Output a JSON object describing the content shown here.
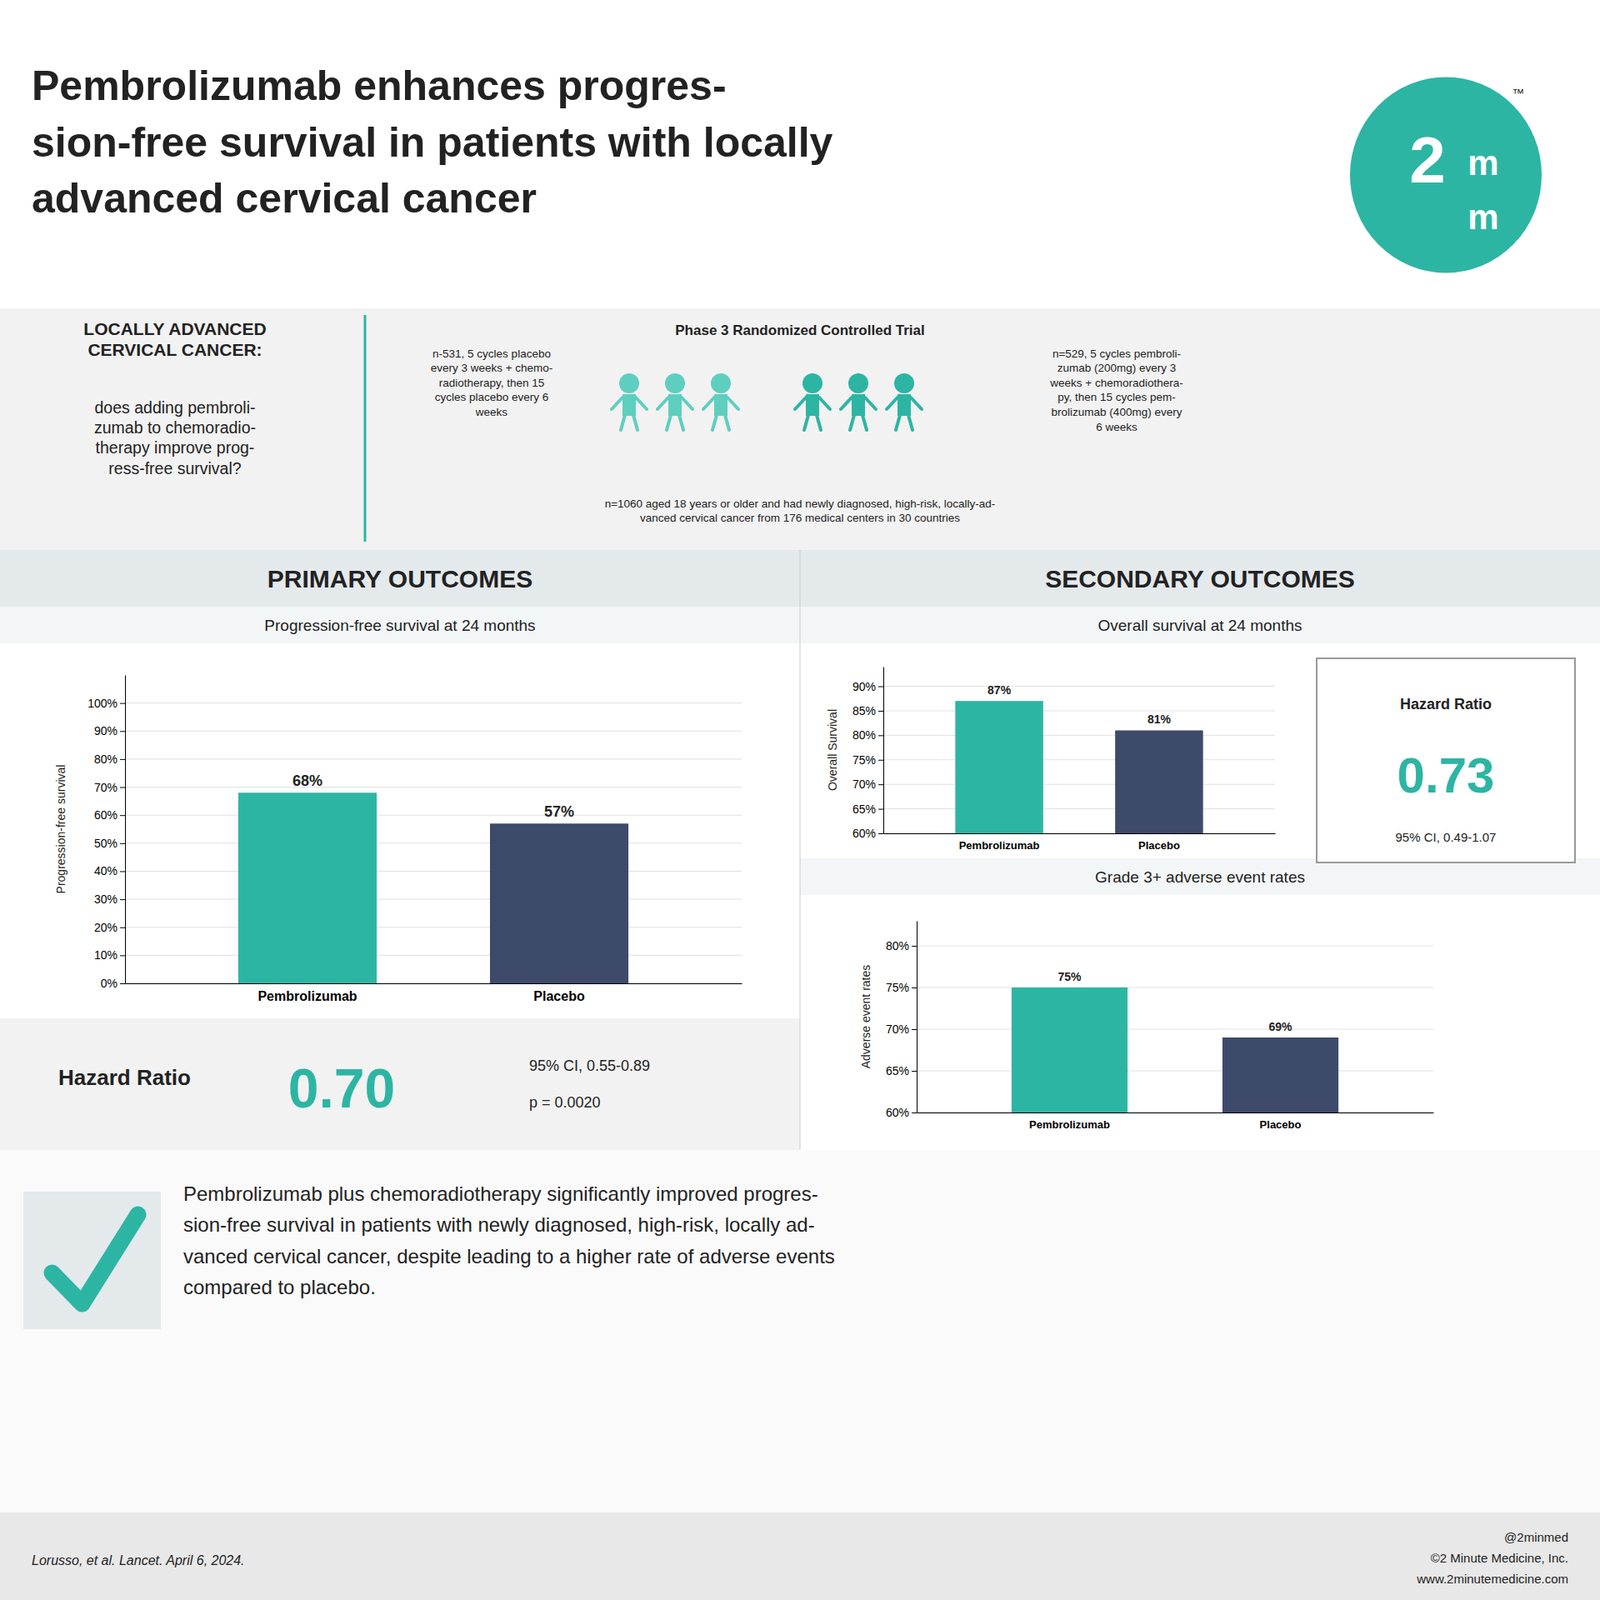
{
  "chart_data": [
    {
      "type": "bar",
      "title": "Progression-free survival at 24 months",
      "ylabel": "Progression-free survival",
      "categories": [
        "Pembrolizumab",
        "Placebo"
      ],
      "values": [
        68,
        57
      ],
      "value_labels": [
        "68%",
        "57%"
      ],
      "colors": [
        "#2db5a3",
        "#3d4a6a"
      ],
      "ylim": [
        0,
        110
      ],
      "yticks": [
        {
          "value": 0,
          "label": "0%"
        },
        {
          "value": 10,
          "label": "10%"
        },
        {
          "value": 20,
          "label": "20%"
        },
        {
          "value": 30,
          "label": "30%"
        },
        {
          "value": 40,
          "label": "40%"
        },
        {
          "value": 50,
          "label": "50%"
        },
        {
          "value": 60,
          "label": "60%"
        },
        {
          "value": 70,
          "label": "70%"
        },
        {
          "value": 80,
          "label": "80%"
        },
        {
          "value": 90,
          "label": "90%"
        },
        {
          "value": 100,
          "label": "100%"
        }
      ],
      "grid": true,
      "data_labels": true,
      "annotations": [
        "Pembrolizumab enhances progres-\nsion-free survival in patients with locally\nadvanced cervical cancer",
        "2",
        "m",
        "m",
        "™",
        "LOCALLY ADVANCED\nCERVICAL CANCER:",
        "does adding pembroli-\nzumab to chemoradio-\ntherapy improve prog-\nress-free survival?",
        "Phase 3 Randomized Controlled Trial",
        "n-531, 5 cycles placebo\nevery 3 weeks + chemo-\nradiotherapy, then 15\ncycles placebo every 6\nweeks",
        "n=529, 5 cycles pembroli-\nzumab (200mg) every 3\nweeks + chemoradiothera-\npy, then 15 cycles pem-\nbrolizumab (400mg) every\n6 weeks",
        "n=1060 aged 18 years or older and had newly diagnosed, high-risk, locally-ad-\nvanced cervical cancer from 176 medical centers in 30 countries",
        "PRIMARY OUTCOMES",
        "Hazard Ratio",
        "0.70",
        "95% CI, 0.55-0.89",
        "p = 0.0020",
        "Pembrolizumab plus chemoradiotherapy significantly improved progres-\nsion-free survival in patients with newly diagnosed, high-risk, locally ad-\nvanced cervical cancer, despite leading to a higher rate of adverse events\ncompared to placebo.",
        "Lorusso, et al. Lancet. April 6, 2024.",
        "@2minmed",
        "©2 Minute Medicine, Inc.",
        "www.2minutemedicine.com"
      ]
    },
    {
      "type": "bar",
      "title": "Overall survival at 24 months",
      "ylabel": "Overall Survival",
      "categories": [
        "Pembrolizumab",
        "Placebo"
      ],
      "values": [
        87,
        81
      ],
      "value_labels": [
        "87%",
        "81%"
      ],
      "colors": [
        "#2db5a3",
        "#3d4a6a"
      ],
      "ylim": [
        60,
        94
      ],
      "yticks": [
        {
          "value": 60,
          "label": "60%"
        },
        {
          "value": 65,
          "label": "65%"
        },
        {
          "value": 70,
          "label": "70%"
        },
        {
          "value": 75,
          "label": "75%"
        },
        {
          "value": 80,
          "label": "80%"
        },
        {
          "value": 85,
          "label": "85%"
        },
        {
          "value": 90,
          "label": "90%"
        }
      ],
      "grid": true,
      "data_labels": true,
      "annotations": [
        "SECONDARY OUTCOMES",
        "Hazard Ratio",
        "0.73",
        "95% CI, 0.49-1.07"
      ]
    },
    {
      "type": "bar",
      "title": "Grade 3+ adverse event rates",
      "ylabel": "Adverse event rates",
      "categories": [
        "Pembrolizumab",
        "Placebo"
      ],
      "values": [
        75,
        69
      ],
      "value_labels": [
        "75%",
        "69%"
      ],
      "colors": [
        "#2db5a3",
        "#3d4a6a"
      ],
      "ylim": [
        60,
        83
      ],
      "yticks": [
        {
          "value": 60,
          "label": "60%"
        },
        {
          "value": 65,
          "label": "65%"
        },
        {
          "value": 70,
          "label": "70%"
        },
        {
          "value": 75,
          "label": "75%"
        },
        {
          "value": 80,
          "label": "80%"
        }
      ],
      "grid": true,
      "data_labels": true
    }
  ]
}
